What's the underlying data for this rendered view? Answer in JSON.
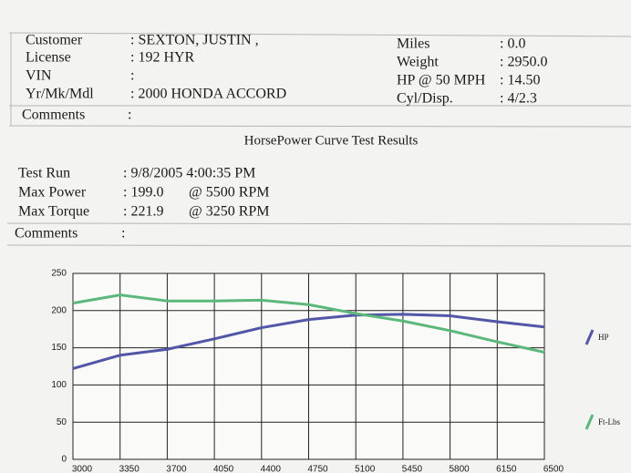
{
  "header": {
    "left": [
      {
        "label": "Customer",
        "value": ": SEXTON, JUSTIN  ,"
      },
      {
        "label": "License",
        "value": ": 192 HYR"
      },
      {
        "label": "VIN",
        "value": ":"
      },
      {
        "label": "Yr/Mk/Mdl",
        "value": ": 2000 HONDA ACCORD"
      }
    ],
    "right": [
      {
        "label": "Miles",
        "value": ": 0.0"
      },
      {
        "label": "Weight",
        "value": ": 2950.0"
      },
      {
        "label": "HP @ 50 MPH",
        "value": ": 14.50"
      },
      {
        "label": "Cyl/Disp.",
        "value": ": 4/2.3"
      }
    ],
    "comments": {
      "label": "Comments",
      "value": ":"
    }
  },
  "report_title": "HorsePower Curve Test Results",
  "results": {
    "rows": [
      {
        "label": "Test Run",
        "value": ": 9/8/2005 4:00:35 PM"
      },
      {
        "label": "Max Power",
        "value": ": 199.0",
        "at": "@ 5500  RPM"
      },
      {
        "label": "Max Torque",
        "value": ": 221.9",
        "at": "@ 3250  RPM"
      }
    ],
    "comments": {
      "label": "Comments",
      "value": ":"
    }
  },
  "chart_data": {
    "type": "line",
    "x": [
      3000,
      3350,
      3700,
      4050,
      4400,
      4750,
      5100,
      5450,
      5800,
      6150,
      6500
    ],
    "xlim": [
      3000,
      6500
    ],
    "xticks": [
      3000,
      3350,
      3700,
      4050,
      4400,
      4750,
      5100,
      5450,
      5800,
      6150,
      6500
    ],
    "ylim": [
      0,
      250
    ],
    "yticks": [
      0,
      50,
      100,
      150,
      200,
      250
    ],
    "grid": true,
    "legend": "right",
    "series": [
      {
        "name": "HP",
        "color": "#5256a6",
        "values": [
          122,
          140,
          148,
          162,
          177,
          188,
          194,
          195,
          193,
          185,
          178
        ]
      },
      {
        "name": "Ft-Lbs",
        "color": "#5cb87a",
        "values": [
          210,
          221,
          213,
          213,
          214,
          208,
          196,
          186,
          173,
          158,
          144
        ]
      }
    ]
  }
}
